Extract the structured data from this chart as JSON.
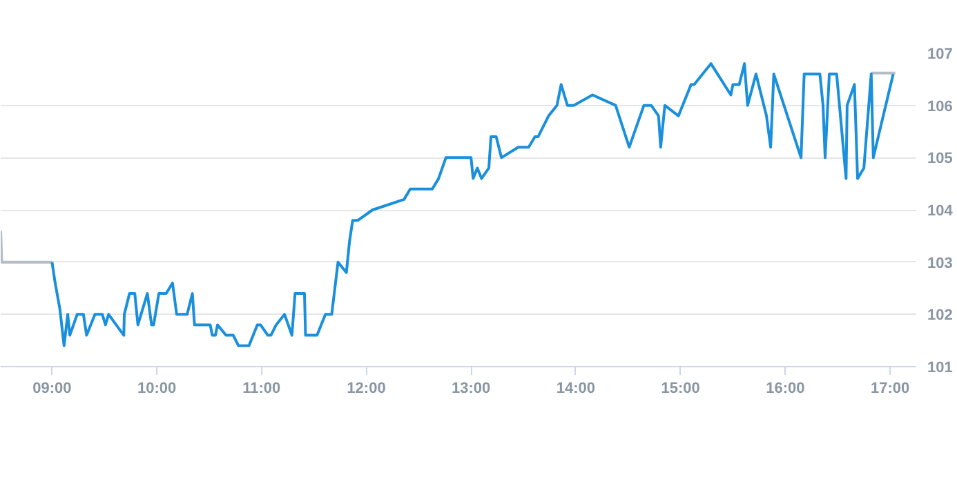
{
  "chart_data": {
    "type": "line",
    "xlim": [
      8.51,
      17.25
    ],
    "ylim": [
      101,
      107
    ],
    "xticks": [
      {
        "value": 9,
        "label": "09:00"
      },
      {
        "value": 10,
        "label": "10:00"
      },
      {
        "value": 11,
        "label": "11:00"
      },
      {
        "value": 12,
        "label": "12:00"
      },
      {
        "value": 13,
        "label": "13:00"
      },
      {
        "value": 14,
        "label": "14:00"
      },
      {
        "value": 15,
        "label": "15:00"
      },
      {
        "value": 16,
        "label": "16:00"
      },
      {
        "value": 17,
        "label": "17:00"
      }
    ],
    "yticks": [
      101,
      102,
      103,
      104,
      105,
      106,
      107
    ],
    "grid": "y",
    "marker": "none",
    "line_style": "solid",
    "series": [
      {
        "color": "#b4bcc4",
        "x": [
          8.51,
          8.52,
          9.0,
          12.0,
          16.82,
          17.05
        ],
        "values": [
          103.6,
          103.0,
          103.0,
          null,
          106.62,
          106.62
        ]
      },
      {
        "color": "#1a8fdc",
        "x": [
          9.0,
          9.03,
          9.075,
          9.115,
          9.15,
          9.17,
          9.24,
          9.3,
          9.33,
          9.41,
          9.48,
          9.51,
          9.54,
          9.685,
          9.69,
          9.74,
          9.79,
          9.82,
          9.91,
          9.95,
          9.97,
          10.02,
          10.09,
          10.15,
          10.19,
          10.29,
          10.34,
          10.36,
          10.51,
          10.53,
          10.56,
          10.58,
          10.66,
          10.73,
          10.78,
          10.88,
          10.96,
          10.99,
          11.06,
          11.09,
          11.14,
          11.22,
          11.29,
          11.32,
          11.41,
          11.42,
          11.53,
          11.61,
          11.67,
          11.73,
          11.81,
          11.84,
          11.87,
          11.92,
          12.06,
          12.36,
          12.42,
          12.63,
          12.69,
          12.76,
          13.0,
          13.02,
          13.06,
          13.1,
          13.17,
          13.19,
          13.24,
          13.29,
          13.45,
          13.55,
          13.61,
          13.64,
          13.74,
          13.82,
          13.86,
          13.92,
          13.98,
          14.16,
          14.38,
          14.51,
          14.65,
          14.72,
          14.79,
          14.81,
          14.85,
          14.98,
          15.1,
          15.13,
          15.29,
          15.48,
          15.5,
          15.56,
          15.61,
          15.64,
          15.72,
          15.82,
          15.86,
          15.89,
          16.15,
          16.18,
          16.33,
          16.36,
          16.38,
          16.42,
          16.49,
          16.58,
          16.59,
          16.66,
          16.69,
          16.75,
          16.82,
          16.84,
          17.03
        ],
        "values": [
          103.0,
          102.6,
          102.1,
          101.4,
          102.0,
          101.6,
          102.0,
          102.0,
          101.6,
          102.0,
          102.0,
          101.8,
          102.0,
          101.6,
          102.0,
          102.4,
          102.4,
          101.8,
          102.4,
          101.8,
          101.8,
          102.4,
          102.4,
          102.6,
          102.0,
          102.0,
          102.4,
          101.8,
          101.8,
          101.6,
          101.6,
          101.8,
          101.6,
          101.6,
          101.4,
          101.4,
          101.8,
          101.8,
          101.6,
          101.6,
          101.8,
          102.0,
          101.6,
          102.4,
          102.4,
          101.6,
          101.6,
          102.0,
          102.0,
          103.0,
          102.8,
          103.4,
          103.8,
          103.8,
          104.0,
          104.2,
          104.4,
          104.4,
          104.6,
          105.0,
          105.0,
          104.6,
          104.8,
          104.6,
          104.8,
          105.4,
          105.4,
          105.0,
          105.2,
          105.2,
          105.4,
          105.4,
          105.8,
          106.0,
          106.4,
          106.0,
          106.0,
          106.2,
          106.0,
          105.2,
          106.0,
          106.0,
          105.8,
          105.2,
          106.0,
          105.8,
          106.4,
          106.4,
          106.8,
          106.2,
          106.4,
          106.4,
          106.8,
          106.0,
          106.6,
          105.8,
          105.2,
          106.6,
          105.0,
          106.6,
          106.6,
          106.0,
          105.0,
          106.6,
          106.6,
          104.6,
          106.0,
          106.4,
          104.6,
          104.8,
          106.6,
          105.0,
          106.6
        ]
      }
    ]
  }
}
